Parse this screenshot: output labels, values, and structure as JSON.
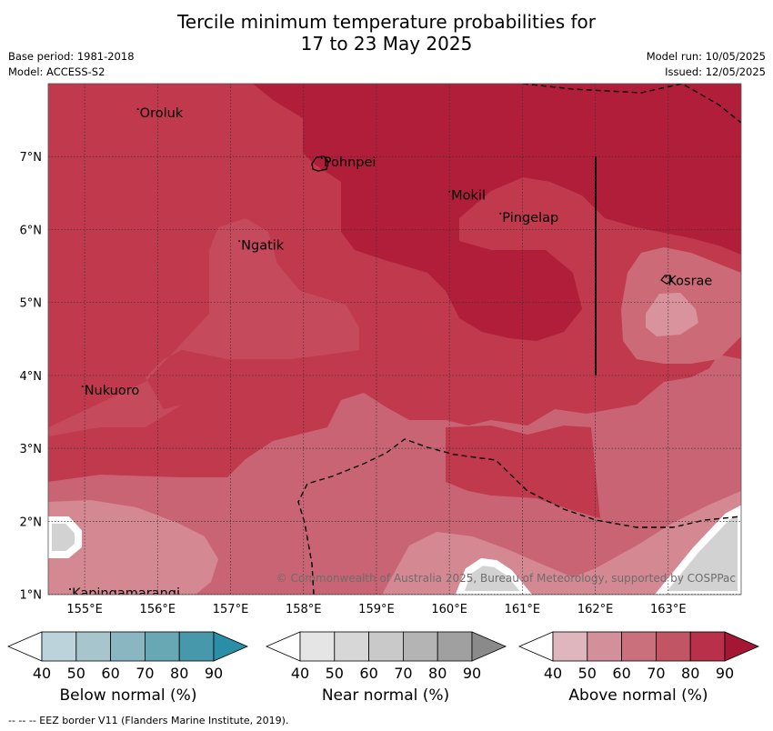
{
  "title": {
    "line1": "Tercile minimum temperature probabilities for",
    "line2": "17 to 23 May 2025"
  },
  "meta": {
    "base_period": "Base period: 1981-2018",
    "model": "Model: ACCESS-S2",
    "model_run": "Model run: 10/05/2025",
    "issued": "Issued: 12/05/2025"
  },
  "map": {
    "lat_ticks": [
      "1°N",
      "2°N",
      "3°N",
      "4°N",
      "5°N",
      "6°N",
      "7°N"
    ],
    "lon_ticks": [
      "155°E",
      "156°E",
      "157°E",
      "158°E",
      "159°E",
      "160°E",
      "161°E",
      "162°E",
      "163°E"
    ],
    "places": [
      {
        "name": "Oroluk",
        "lon": 155.73,
        "lat": 7.65
      },
      {
        "name": "Pohnpei",
        "lon": 158.25,
        "lat": 6.98
      },
      {
        "name": "Mokil",
        "lon": 160.0,
        "lat": 6.52
      },
      {
        "name": "Pingelap",
        "lon": 160.7,
        "lat": 6.22
      },
      {
        "name": "Ngatik",
        "lon": 157.12,
        "lat": 5.84
      },
      {
        "name": "Kosrae",
        "lon": 162.97,
        "lat": 5.35
      },
      {
        "name": "Nukuoro",
        "lon": 154.97,
        "lat": 3.85
      },
      {
        "name": "Kapingamarangi",
        "lon": 154.8,
        "lat": 1.07
      }
    ],
    "copyright": "© Commonwealth of Australia 2025, Bureau of Meteorology, supported by COSPPac",
    "colors": {
      "above": [
        "#dfb6bd",
        "#d4909a",
        "#c9707c",
        "#c25563",
        "#b83049",
        "#a51634"
      ],
      "near": [
        "#e5e5e5",
        "#d7d7d7",
        "#c9c9c9",
        "#b4b4b4",
        "#a0a0a0",
        "#8a8a8a"
      ],
      "below": [
        "#bcd3db",
        "#a6c5cc",
        "#89b6c0",
        "#67a8b4",
        "#4798aa",
        "#2a8ea6"
      ]
    }
  },
  "colorbars": [
    {
      "label": "Below normal (%)",
      "ticks": [
        "40",
        "50",
        "60",
        "70",
        "80",
        "90"
      ],
      "scheme": "below"
    },
    {
      "label": "Near normal (%)",
      "ticks": [
        "40",
        "50",
        "60",
        "70",
        "80",
        "90"
      ],
      "scheme": "near"
    },
    {
      "label": "Above normal (%)",
      "ticks": [
        "40",
        "50",
        "60",
        "70",
        "80",
        "90"
      ],
      "scheme": "above"
    }
  ],
  "footer": "--  --  -- EEZ border V11 (Flanders Marine Institute, 2019)."
}
